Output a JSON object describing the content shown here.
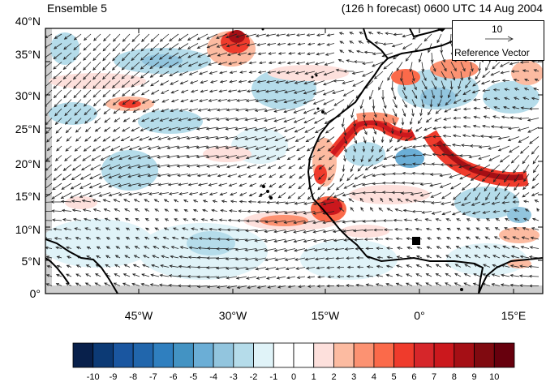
{
  "header": {
    "left_title": "Ensemble 5",
    "right_title": "(126 h forecast) 0600 UTC 14 Aug 2004"
  },
  "axes": {
    "lat_ticks": [
      "40°N",
      "35°N",
      "30°N",
      "25°N",
      "20°N",
      "15°N",
      "10°N",
      "5°N",
      "0°"
    ],
    "lon_ticks": [
      "45°W",
      "30°W",
      "15°W",
      "0°",
      "15°E"
    ],
    "lat_range": [
      0,
      40
    ],
    "lon_range": [
      -60,
      20
    ]
  },
  "reference_vector": {
    "magnitude": "10",
    "label": "Reference Vector"
  },
  "colorbar": {
    "labels": [
      "-10",
      "-9",
      "-8",
      "-7",
      "-6",
      "-5",
      "-4",
      "-3",
      "-2",
      "-1",
      "0",
      "1",
      "2",
      "3",
      "4",
      "5",
      "6",
      "7",
      "8",
      "9",
      "10"
    ],
    "colors": [
      "#08204b",
      "#0c3a75",
      "#1a56a0",
      "#2166ac",
      "#2f7fbf",
      "#4393c3",
      "#6baed6",
      "#92c5de",
      "#b5dcea",
      "#e0f3f8",
      "#ffffff",
      "#ffffff",
      "#fde0dc",
      "#fcbba1",
      "#fc9272",
      "#fb6a4a",
      "#ef3b2c",
      "#d6262a",
      "#cb181d",
      "#a50f15",
      "#800a10",
      "#67000d"
    ]
  },
  "colors": {
    "land": "#000000",
    "missing": "#cfcfcf",
    "vectors": "#222222"
  }
}
